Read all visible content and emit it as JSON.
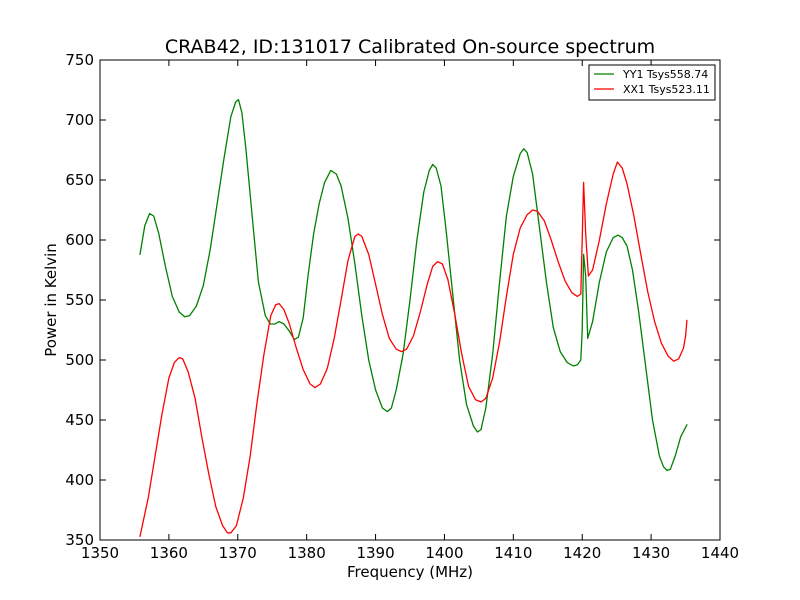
{
  "chart_data": {
    "type": "line",
    "title": "CRAB42, ID:131017 Calibrated On-source spectrum",
    "xlabel": "Frequency (MHz)",
    "ylabel": "Power in Kelvin",
    "xlim": [
      1350,
      1440
    ],
    "ylim": [
      350,
      750
    ],
    "xticks": [
      1350,
      1360,
      1370,
      1380,
      1390,
      1400,
      1410,
      1420,
      1430,
      1440
    ],
    "yticks": [
      350,
      400,
      450,
      500,
      550,
      600,
      650,
      700,
      750
    ],
    "grid": false,
    "legend_position": "top-right",
    "series": [
      {
        "name": "YY1 Tsys558.74",
        "color": "#008000",
        "points": [
          [
            1355.8,
            588
          ],
          [
            1356.5,
            612
          ],
          [
            1357.2,
            622
          ],
          [
            1357.8,
            620
          ],
          [
            1358.5,
            606
          ],
          [
            1359.5,
            578
          ],
          [
            1360.5,
            553
          ],
          [
            1361.5,
            540
          ],
          [
            1362.3,
            536
          ],
          [
            1363.0,
            537
          ],
          [
            1364.0,
            545
          ],
          [
            1365.0,
            562
          ],
          [
            1366.0,
            592
          ],
          [
            1367.0,
            630
          ],
          [
            1368.0,
            668
          ],
          [
            1369.0,
            703
          ],
          [
            1369.7,
            715
          ],
          [
            1370.1,
            717
          ],
          [
            1370.6,
            706
          ],
          [
            1371.2,
            675
          ],
          [
            1372.0,
            625
          ],
          [
            1373.0,
            565
          ],
          [
            1374.0,
            537
          ],
          [
            1374.7,
            530
          ],
          [
            1375.4,
            530
          ],
          [
            1376.0,
            532
          ],
          [
            1376.7,
            530
          ],
          [
            1377.5,
            524
          ],
          [
            1378.2,
            517
          ],
          [
            1378.8,
            519
          ],
          [
            1379.5,
            535
          ],
          [
            1380.2,
            570
          ],
          [
            1381.0,
            605
          ],
          [
            1381.8,
            630
          ],
          [
            1382.6,
            648
          ],
          [
            1383.5,
            658
          ],
          [
            1384.3,
            655
          ],
          [
            1385.0,
            645
          ],
          [
            1386.0,
            618
          ],
          [
            1387.0,
            580
          ],
          [
            1388.0,
            537
          ],
          [
            1389.0,
            500
          ],
          [
            1390.0,
            475
          ],
          [
            1391.0,
            460
          ],
          [
            1391.7,
            457
          ],
          [
            1392.3,
            460
          ],
          [
            1393.0,
            475
          ],
          [
            1394.0,
            505
          ],
          [
            1395.0,
            550
          ],
          [
            1396.0,
            600
          ],
          [
            1397.0,
            640
          ],
          [
            1397.8,
            658
          ],
          [
            1398.3,
            663
          ],
          [
            1398.8,
            660
          ],
          [
            1399.5,
            645
          ],
          [
            1400.3,
            605
          ],
          [
            1401.2,
            555
          ],
          [
            1402.2,
            500
          ],
          [
            1403.2,
            463
          ],
          [
            1404.2,
            445
          ],
          [
            1404.8,
            440
          ],
          [
            1405.3,
            442
          ],
          [
            1406.0,
            460
          ],
          [
            1407.0,
            505
          ],
          [
            1408.0,
            565
          ],
          [
            1409.0,
            620
          ],
          [
            1410.0,
            653
          ],
          [
            1411.0,
            672
          ],
          [
            1411.5,
            676
          ],
          [
            1412.0,
            673
          ],
          [
            1412.8,
            655
          ],
          [
            1413.8,
            610
          ],
          [
            1414.8,
            565
          ],
          [
            1415.8,
            527
          ],
          [
            1416.8,
            507
          ],
          [
            1417.8,
            498
          ],
          [
            1418.7,
            495
          ],
          [
            1419.3,
            496
          ],
          [
            1419.8,
            500
          ],
          [
            1420.0,
            525
          ],
          [
            1420.2,
            588
          ],
          [
            1420.5,
            570
          ],
          [
            1420.8,
            518
          ],
          [
            1421.5,
            532
          ],
          [
            1422.5,
            565
          ],
          [
            1423.5,
            590
          ],
          [
            1424.5,
            602
          ],
          [
            1425.2,
            604
          ],
          [
            1425.8,
            602
          ],
          [
            1426.5,
            595
          ],
          [
            1427.3,
            575
          ],
          [
            1428.2,
            540
          ],
          [
            1429.2,
            495
          ],
          [
            1430.2,
            450
          ],
          [
            1431.2,
            420
          ],
          [
            1431.8,
            411
          ],
          [
            1432.3,
            408
          ],
          [
            1432.8,
            409
          ],
          [
            1433.5,
            420
          ],
          [
            1434.3,
            436
          ],
          [
            1435.2,
            446
          ]
        ]
      },
      {
        "name": "XX1 Tsys523.11",
        "color": "#ff0000",
        "points": [
          [
            1355.8,
            353
          ],
          [
            1357.0,
            385
          ],
          [
            1358.0,
            420
          ],
          [
            1359.0,
            455
          ],
          [
            1360.0,
            485
          ],
          [
            1360.8,
            498
          ],
          [
            1361.5,
            502
          ],
          [
            1362.0,
            501
          ],
          [
            1362.8,
            490
          ],
          [
            1363.8,
            468
          ],
          [
            1364.8,
            435
          ],
          [
            1365.8,
            405
          ],
          [
            1366.8,
            378
          ],
          [
            1367.8,
            362
          ],
          [
            1368.5,
            356
          ],
          [
            1369.0,
            356
          ],
          [
            1369.8,
            362
          ],
          [
            1370.8,
            385
          ],
          [
            1371.8,
            420
          ],
          [
            1372.8,
            465
          ],
          [
            1373.8,
            505
          ],
          [
            1374.8,
            537
          ],
          [
            1375.5,
            546
          ],
          [
            1376.0,
            547
          ],
          [
            1376.7,
            542
          ],
          [
            1377.5,
            530
          ],
          [
            1378.5,
            510
          ],
          [
            1379.5,
            492
          ],
          [
            1380.5,
            480
          ],
          [
            1381.2,
            477
          ],
          [
            1382.0,
            480
          ],
          [
            1383.0,
            493
          ],
          [
            1384.0,
            518
          ],
          [
            1385.0,
            550
          ],
          [
            1386.0,
            583
          ],
          [
            1387.0,
            603
          ],
          [
            1387.5,
            605
          ],
          [
            1388.0,
            603
          ],
          [
            1389.0,
            588
          ],
          [
            1390.0,
            563
          ],
          [
            1391.0,
            538
          ],
          [
            1392.0,
            518
          ],
          [
            1393.0,
            509
          ],
          [
            1393.8,
            507
          ],
          [
            1394.5,
            509
          ],
          [
            1395.5,
            520
          ],
          [
            1396.5,
            540
          ],
          [
            1397.5,
            563
          ],
          [
            1398.3,
            578
          ],
          [
            1399.0,
            582
          ],
          [
            1399.7,
            580
          ],
          [
            1400.5,
            567
          ],
          [
            1401.5,
            538
          ],
          [
            1402.5,
            505
          ],
          [
            1403.5,
            478
          ],
          [
            1404.5,
            467
          ],
          [
            1405.3,
            465
          ],
          [
            1406.0,
            468
          ],
          [
            1407.0,
            485
          ],
          [
            1408.0,
            515
          ],
          [
            1409.0,
            553
          ],
          [
            1410.0,
            588
          ],
          [
            1411.0,
            610
          ],
          [
            1412.0,
            621
          ],
          [
            1412.8,
            625
          ],
          [
            1413.5,
            624
          ],
          [
            1414.5,
            616
          ],
          [
            1415.5,
            600
          ],
          [
            1416.5,
            582
          ],
          [
            1417.5,
            566
          ],
          [
            1418.5,
            556
          ],
          [
            1419.3,
            553
          ],
          [
            1419.8,
            555
          ],
          [
            1420.0,
            600
          ],
          [
            1420.2,
            648
          ],
          [
            1420.5,
            605
          ],
          [
            1420.9,
            570
          ],
          [
            1421.5,
            575
          ],
          [
            1422.5,
            600
          ],
          [
            1423.5,
            630
          ],
          [
            1424.5,
            655
          ],
          [
            1425.1,
            665
          ],
          [
            1425.8,
            660
          ],
          [
            1426.5,
            647
          ],
          [
            1427.5,
            620
          ],
          [
            1428.5,
            588
          ],
          [
            1429.5,
            557
          ],
          [
            1430.5,
            532
          ],
          [
            1431.5,
            514
          ],
          [
            1432.5,
            503
          ],
          [
            1433.3,
            499
          ],
          [
            1434.0,
            501
          ],
          [
            1434.7,
            510
          ],
          [
            1435.0,
            520
          ],
          [
            1435.2,
            533
          ]
        ]
      }
    ]
  }
}
